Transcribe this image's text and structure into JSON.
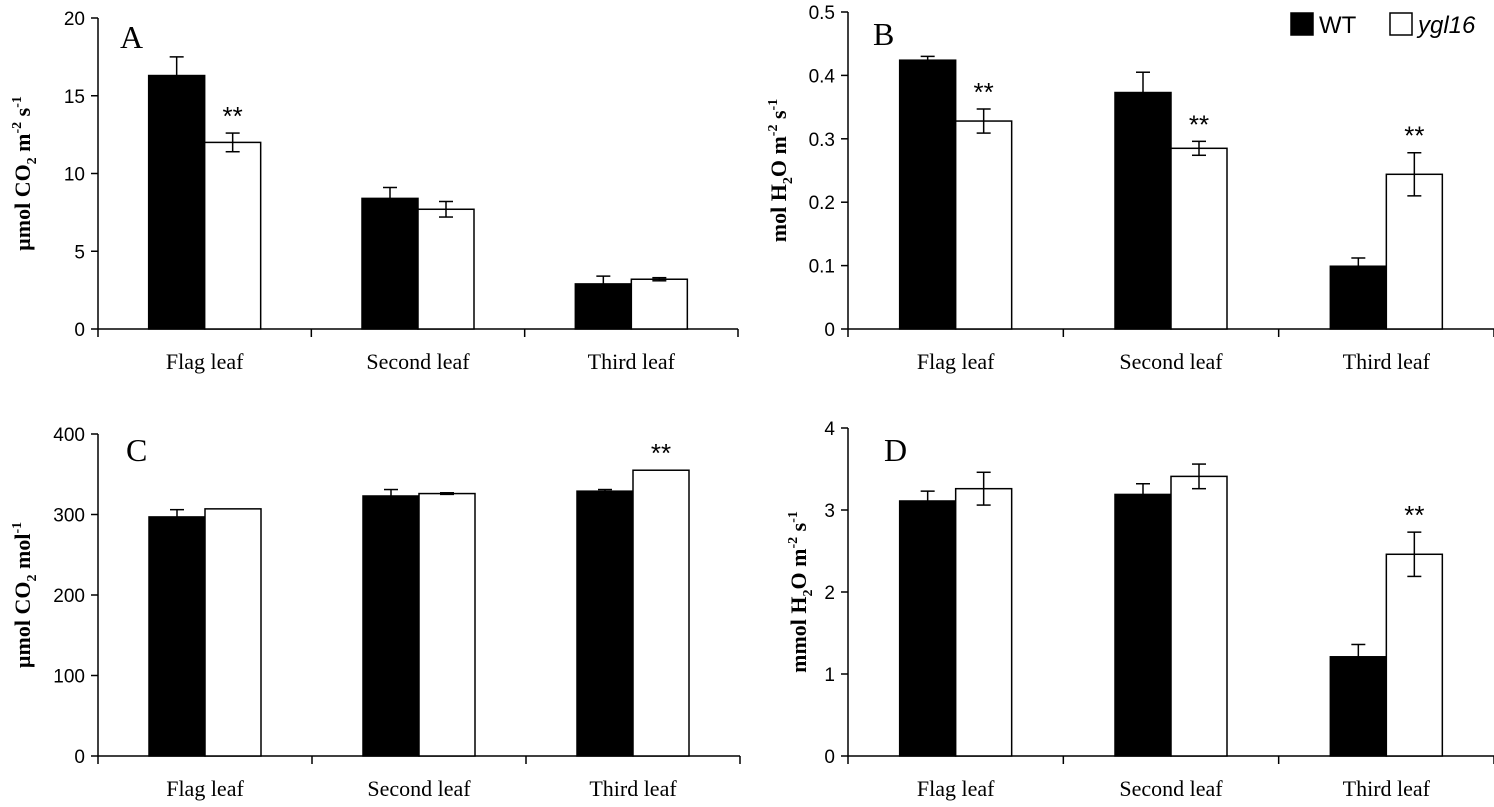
{
  "legend": [
    {
      "name": "WT",
      "fill": "#000000"
    },
    {
      "name": "ygl16",
      "fill": "#ffffff",
      "italic": true
    }
  ],
  "chart_data": [
    {
      "type": "bar",
      "panel_label": "A",
      "ylabel": {
        "pre": "µmol CO",
        "sub1": "2",
        "mid": " m",
        "sup1": "-2",
        "mid2": " s",
        "sup2": "-1"
      },
      "categories": [
        "Flag leaf",
        "Second leaf",
        "Third leaf"
      ],
      "ylim": [
        0,
        20
      ],
      "yticks": [
        0,
        5,
        10,
        15,
        20
      ],
      "series": [
        {
          "name": "WT",
          "values": [
            16.3,
            8.4,
            2.9
          ],
          "errors": [
            1.2,
            0.7,
            0.5
          ]
        },
        {
          "name": "ygl16",
          "values": [
            12.0,
            7.7,
            3.2
          ],
          "errors": [
            0.6,
            0.5,
            0.1
          ]
        }
      ],
      "significance": [
        "**",
        "",
        ""
      ]
    },
    {
      "type": "bar",
      "panel_label": "B",
      "ylabel": {
        "pre": "mol H",
        "sub1": "2",
        "mid": "O m",
        "sup1": "-2",
        "mid2": " s",
        "sup2": "-1"
      },
      "categories": [
        "Flag leaf",
        "Second leaf",
        "Third leaf"
      ],
      "ylim": [
        0,
        0.5
      ],
      "yticks": [
        0,
        0.1,
        0.2,
        0.3,
        0.4,
        0.5
      ],
      "series": [
        {
          "name": "WT",
          "values": [
            0.424,
            0.373,
            0.099
          ],
          "errors": [
            0.006,
            0.032,
            0.013
          ]
        },
        {
          "name": "ygl16",
          "values": [
            0.328,
            0.285,
            0.244
          ],
          "errors": [
            0.019,
            0.011,
            0.034
          ]
        }
      ],
      "significance": [
        "**",
        "**",
        "**"
      ]
    },
    {
      "type": "bar",
      "panel_label": "C",
      "ylabel": {
        "pre": "µmol CO",
        "sub1": "2",
        "mid": " mol",
        "sup1": "-1",
        "mid2": "",
        "sup2": ""
      },
      "categories": [
        "Flag leaf",
        "Second leaf",
        "Third leaf"
      ],
      "ylim": [
        0,
        400
      ],
      "yticks": [
        0,
        100,
        200,
        300,
        400
      ],
      "series": [
        {
          "name": "WT",
          "values": [
            297,
            323,
            329
          ],
          "errors": [
            9,
            8,
            2
          ]
        },
        {
          "name": "ygl16",
          "values": [
            307,
            326,
            355
          ],
          "errors": [
            0,
            1,
            0
          ]
        }
      ],
      "significance": [
        "",
        "",
        "**"
      ]
    },
    {
      "type": "bar",
      "panel_label": "D",
      "ylabel": {
        "pre": "mmol H",
        "sub1": "2",
        "mid": "O m",
        "sup1": "-2",
        "mid2": " s",
        "sup2": "-1"
      },
      "categories": [
        "Flag leaf",
        "Second leaf",
        "Third leaf"
      ],
      "ylim": [
        0,
        4
      ],
      "yticks": [
        0,
        1,
        2,
        3,
        4
      ],
      "series": [
        {
          "name": "WT",
          "values": [
            3.11,
            3.19,
            1.21
          ],
          "errors": [
            0.12,
            0.13,
            0.15
          ]
        },
        {
          "name": "ygl16",
          "values": [
            3.26,
            3.41,
            2.46
          ],
          "errors": [
            0.2,
            0.15,
            0.27
          ]
        }
      ],
      "significance": [
        "",
        "",
        "**"
      ]
    }
  ]
}
